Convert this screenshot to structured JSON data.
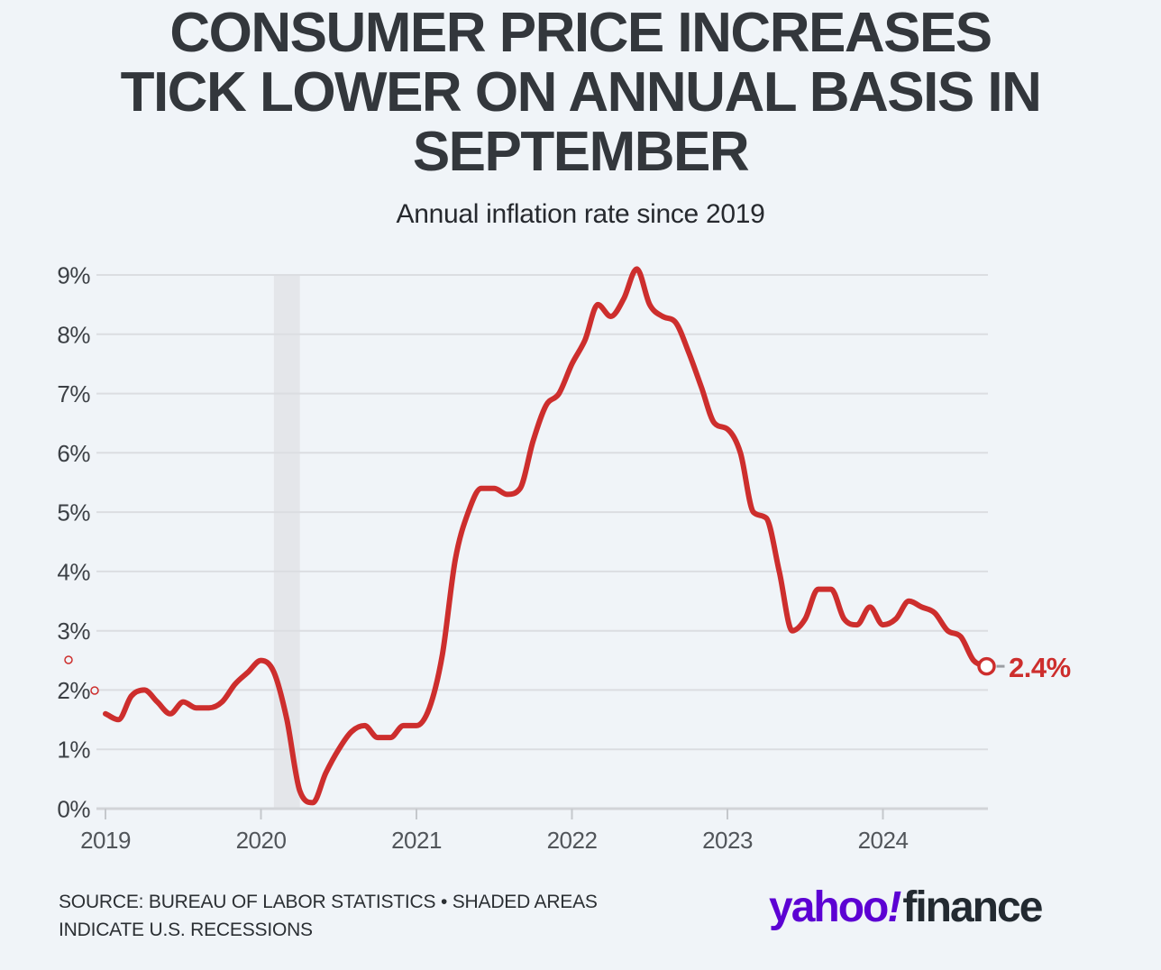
{
  "header": {
    "title_lines": [
      "CONSUMER PRICE INCREASES",
      "TICK LOWER ON ANNUAL BASIS IN",
      "SEPTEMBER"
    ],
    "subtitle": "Annual inflation rate since 2019"
  },
  "chart_data": {
    "type": "line",
    "title": "Annual inflation rate since 2019",
    "xlabel": "",
    "ylabel": "",
    "frequency": "monthly",
    "start_month": "2019-01",
    "end_month": "2024-09",
    "ylim": [
      0,
      9
    ],
    "grid": "horizontal",
    "series": [
      {
        "name": "Annual inflation rate (CPI, year-over-year %)",
        "color": "#cd2e2d",
        "values": [
          1.6,
          1.5,
          1.9,
          2.0,
          1.8,
          1.6,
          1.8,
          1.7,
          1.7,
          1.8,
          2.1,
          2.3,
          2.5,
          2.3,
          1.5,
          0.3,
          0.1,
          0.6,
          1.0,
          1.3,
          1.4,
          1.2,
          1.2,
          1.4,
          1.4,
          1.7,
          2.6,
          4.2,
          5.0,
          5.4,
          5.4,
          5.3,
          5.4,
          6.2,
          6.8,
          7.0,
          7.5,
          7.9,
          8.5,
          8.3,
          8.6,
          9.1,
          8.5,
          8.3,
          8.2,
          7.7,
          7.1,
          6.5,
          6.4,
          6.0,
          5.0,
          4.9,
          4.0,
          3.0,
          3.2,
          3.7,
          3.7,
          3.2,
          3.1,
          3.4,
          3.1,
          3.2,
          3.5,
          3.4,
          3.3,
          3.0,
          2.9,
          2.5,
          2.4
        ]
      }
    ],
    "x_ticks": [
      "2019",
      "2020",
      "2021",
      "2022",
      "2023",
      "2024"
    ],
    "y_ticks": [
      {
        "value": 0,
        "label": "0%"
      },
      {
        "value": 1,
        "label": "1%"
      },
      {
        "value": 2,
        "label": "2%"
      },
      {
        "value": 3,
        "label": "3%"
      },
      {
        "value": 4,
        "label": "4%"
      },
      {
        "value": 5,
        "label": "5%"
      },
      {
        "value": 6,
        "label": "6%"
      },
      {
        "value": 7,
        "label": "7%"
      },
      {
        "value": 8,
        "label": "8%"
      },
      {
        "value": 9,
        "label": "9%"
      }
    ],
    "recession_band": {
      "start": "2020-02",
      "end": "2020-04"
    },
    "end_label": "2.4%",
    "last_value": 2.4,
    "legend": "none",
    "artifact_markers": [
      {
        "x": 76,
        "y": 732,
        "r": 4
      },
      {
        "x": 105,
        "y": 766,
        "r": 4
      }
    ]
  },
  "footer": {
    "source_line1": "SOURCE: BUREAU OF LABOR STATISTICS • SHADED AREAS",
    "source_line2": "INDICATE U.S. RECESSIONS",
    "logo": {
      "part1": "yahoo",
      "bang": "!",
      "part2": "finance"
    }
  },
  "colors": {
    "background": "#f0f4f8",
    "line_red": "#cd2e2d",
    "recession_band": "#e4e6ea",
    "gridline": "#dbdde1",
    "logo_purple": "#5c02d3",
    "logo_dark": "#232a31",
    "title_text": "#33373c"
  }
}
